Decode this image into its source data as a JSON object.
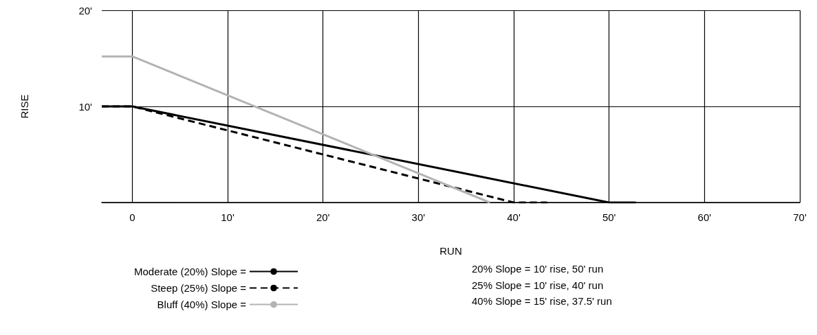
{
  "chart_data": {
    "type": "line",
    "xlabel": "RUN",
    "ylabel": "RISE",
    "xlim": [
      -3.2,
      70
    ],
    "xticks": [
      0,
      {
        "value": 10,
        "label": "10'"
      },
      {
        "value": 20,
        "label": "20'"
      },
      {
        "value": 30,
        "label": "30'"
      },
      {
        "value": 40,
        "label": "40'"
      },
      {
        "value": 50,
        "label": "50'"
      },
      {
        "value": 60,
        "label": "60'"
      },
      {
        "value": 70,
        "label": "70'"
      }
    ],
    "ylim": [
      0,
      20
    ],
    "yticks": [
      {
        "value": 0,
        "label": null
      },
      {
        "value": 10,
        "label": "10'"
      },
      {
        "value": 20,
        "label": "20'"
      }
    ],
    "grid": true,
    "legend": "bottom",
    "marker": "none",
    "series": [
      {
        "name": "Moderate (20%) Slope =",
        "color": "#000000",
        "line_style": "solid",
        "x": [
          -3.2,
          0,
          50,
          52.8
        ],
        "values": [
          10,
          10,
          0,
          0
        ]
      },
      {
        "name": "Steep (25%) Slope =",
        "color": "#000000",
        "line_style": "dashed",
        "x": [
          -3.2,
          0,
          40,
          43.5
        ],
        "values": [
          10,
          10,
          0,
          0
        ]
      },
      {
        "name": "Bluff (40%) Slope =",
        "color": "#b3b3b3",
        "line_style": "solid",
        "x": [
          -3.2,
          0,
          37.5
        ],
        "values": [
          15.2,
          15.2,
          0
        ]
      }
    ],
    "annotations": [
      "20% Slope = 10' rise, 50' run",
      "25% Slope = 10' rise, 40' run",
      "40% Slope = 15' rise, 37.5' run"
    ]
  }
}
